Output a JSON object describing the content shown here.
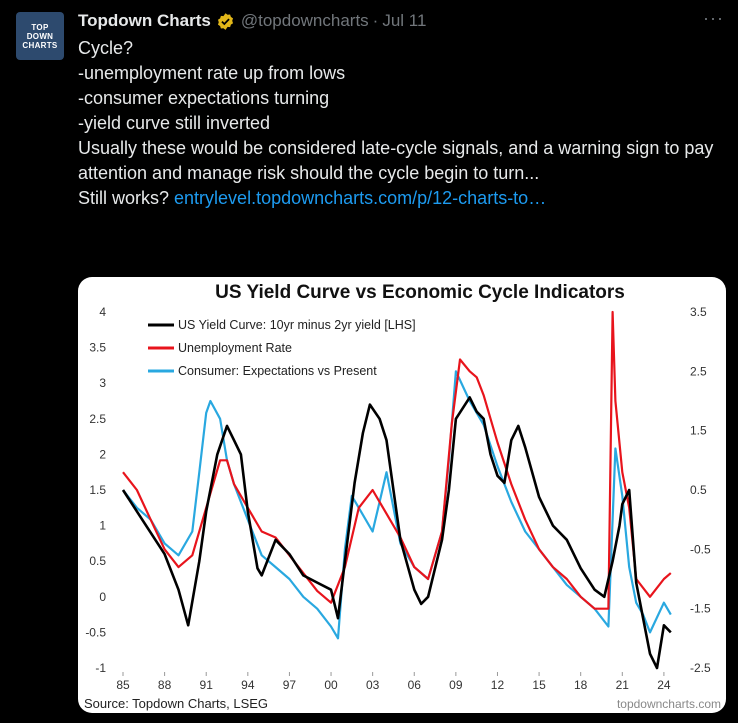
{
  "tweet": {
    "avatar_lines": [
      "TOP",
      "DOWN",
      "CHARTS"
    ],
    "author_name": "Topdown Charts",
    "handle": "@topdowncharts",
    "separator": "·",
    "date": "Jul 11",
    "more_label": "···",
    "text_lines": [
      "Cycle?",
      "-unemployment rate up from lows",
      "-consumer expectations turning",
      "-yield curve still inverted",
      "",
      "Usually these would be considered late-cycle signals, and a warning sign to pay attention and manage risk should the cycle begin to turn...",
      ""
    ],
    "link_prefix": "Still works? ",
    "link_text": "entrylevel.topdowncharts.com/p/12-charts-to…",
    "icons": {
      "verified": "verified-badge-icon",
      "more": "more-options-icon"
    },
    "colors": {
      "accent": "#1d9bf0",
      "verified": "#e2b719",
      "muted": "#71767b"
    }
  },
  "chart_data": {
    "type": "line",
    "title": "US Yield Curve vs Economic Cycle Indicators",
    "source": "Source: Topdown Charts, LSEG",
    "watermark": "topdowncharts.com",
    "x_tick_labels": [
      "85",
      "88",
      "91",
      "94",
      "97",
      "00",
      "03",
      "06",
      "09",
      "12",
      "15",
      "18",
      "21",
      "24"
    ],
    "x_ticks": [
      1985,
      1988,
      1991,
      1994,
      1997,
      2000,
      2003,
      2006,
      2009,
      2012,
      2015,
      2018,
      2021,
      2024
    ],
    "xlim": [
      1985,
      2024.8
    ],
    "y_left": {
      "ticks": [
        4,
        3.5,
        3,
        2.5,
        2,
        1.5,
        1,
        0.5,
        0,
        -0.5,
        -1
      ],
      "tick_labels": [
        "4",
        "3.5",
        "3",
        "2.5",
        "2",
        "1.5",
        "1",
        "0.5",
        "0",
        "-0.5",
        "-1"
      ],
      "lim": [
        -1,
        4
      ]
    },
    "y_right": {
      "ticks": [
        3.5,
        2.5,
        1.5,
        0.5,
        -0.5,
        -1.5,
        -2.5
      ],
      "tick_labels": [
        "3.5",
        "2.5",
        "1.5",
        "0.5",
        "-0.5",
        "-1.5",
        "-2.5"
      ],
      "lim": [
        -2.5,
        3.5
      ]
    },
    "grid": false,
    "legend_placement": "top-left",
    "series": [
      {
        "name": "US Yield Curve: 10yr minus 2yr yield [LHS]",
        "axis": "left",
        "color": "#000000",
        "x": [
          1985,
          1986,
          1987,
          1988,
          1989,
          1989.7,
          1990.5,
          1991,
          1991.8,
          1992.5,
          1993,
          1993.5,
          1994,
          1994.7,
          1995,
          1996,
          1997,
          1998,
          1999,
          2000,
          2000.5,
          2001,
          2001.7,
          2002.3,
          2002.8,
          2003.5,
          2004,
          2005,
          2006,
          2006.5,
          2007,
          2008,
          2008.5,
          2009,
          2010,
          2010.5,
          2011,
          2011.5,
          2012,
          2012.5,
          2013,
          2013.5,
          2014,
          2015,
          2016,
          2017,
          2018,
          2019,
          2019.7,
          2020.3,
          2020.8,
          2021,
          2021.5,
          2022,
          2022.5,
          2023,
          2023.5,
          2024,
          2024.5
        ],
        "y": [
          1.5,
          1.2,
          0.9,
          0.6,
          0.1,
          -0.4,
          0.5,
          1.2,
          2.0,
          2.4,
          2.2,
          2.0,
          1.2,
          0.4,
          0.3,
          0.8,
          0.6,
          0.3,
          0.2,
          0.1,
          -0.3,
          0.5,
          1.6,
          2.3,
          2.7,
          2.5,
          2.2,
          0.8,
          0.1,
          -0.1,
          0.0,
          0.8,
          1.5,
          2.5,
          2.8,
          2.6,
          2.5,
          2.0,
          1.7,
          1.6,
          2.2,
          2.4,
          2.1,
          1.4,
          1.0,
          0.8,
          0.4,
          0.1,
          0.0,
          0.5,
          1.0,
          1.3,
          1.5,
          0.2,
          -0.3,
          -0.8,
          -1.0,
          -0.4,
          -0.5
        ]
      },
      {
        "name": "Unemployment Rate",
        "axis": "right",
        "color": "#e8141c",
        "x": [
          1985,
          1986,
          1987,
          1988,
          1989,
          1990,
          1991,
          1992,
          1992.5,
          1993,
          1994,
          1995,
          1996,
          1997,
          1998,
          1999,
          2000,
          2001,
          2002,
          2003,
          2004,
          2005,
          2006,
          2007,
          2008,
          2008.7,
          2009.3,
          2010,
          2010.5,
          2011,
          2012,
          2013,
          2014,
          2015,
          2016,
          2017,
          2018,
          2019,
          2020,
          2020.3,
          2020.5,
          2021,
          2021.5,
          2022,
          2023,
          2024,
          2024.5
        ],
        "y": [
          0.8,
          0.5,
          0.0,
          -0.5,
          -0.8,
          -0.6,
          0.2,
          1.0,
          1.0,
          0.6,
          0.2,
          -0.2,
          -0.3,
          -0.6,
          -0.9,
          -1.2,
          -1.4,
          -0.8,
          0.2,
          0.5,
          0.1,
          -0.3,
          -0.8,
          -1.0,
          -0.2,
          1.6,
          2.7,
          2.5,
          2.4,
          2.1,
          1.3,
          0.6,
          0.0,
          -0.5,
          -0.8,
          -1.0,
          -1.3,
          -1.5,
          -1.5,
          3.5,
          2.0,
          0.8,
          0.2,
          -1.0,
          -1.3,
          -1.0,
          -0.9
        ]
      },
      {
        "name": "Consumer: Expectations vs Present",
        "axis": "right",
        "color": "#29a8e0",
        "x": [
          1985,
          1986,
          1987,
          1988,
          1989,
          1990,
          1990.5,
          1991,
          1991.3,
          1992,
          1992.5,
          1993,
          1994,
          1995,
          1996,
          1997,
          1998,
          1999,
          2000,
          2000.5,
          2001,
          2001.5,
          2002,
          2003,
          2003.5,
          2004,
          2005,
          2006,
          2007,
          2008,
          2008.5,
          2009,
          2010,
          2011,
          2012,
          2013,
          2014,
          2015,
          2016,
          2017,
          2018,
          2019,
          2020,
          2020.5,
          2021,
          2021.5,
          2022,
          2022.5,
          2023,
          2024,
          2024.5
        ],
        "y": [
          0.5,
          0.2,
          0.0,
          -0.4,
          -0.6,
          -0.2,
          0.8,
          1.8,
          2.0,
          1.7,
          1.0,
          0.6,
          0.0,
          -0.6,
          -0.8,
          -1.0,
          -1.3,
          -1.5,
          -1.8,
          -2.0,
          -0.5,
          0.4,
          0.2,
          -0.2,
          0.3,
          0.8,
          -0.4,
          -0.8,
          -1.0,
          -0.2,
          1.0,
          2.5,
          2.0,
          1.6,
          0.9,
          0.3,
          -0.2,
          -0.5,
          -0.8,
          -1.1,
          -1.3,
          -1.5,
          -1.8,
          1.2,
          0.4,
          -0.8,
          -1.4,
          -1.6,
          -1.9,
          -1.4,
          -1.6
        ]
      }
    ]
  }
}
